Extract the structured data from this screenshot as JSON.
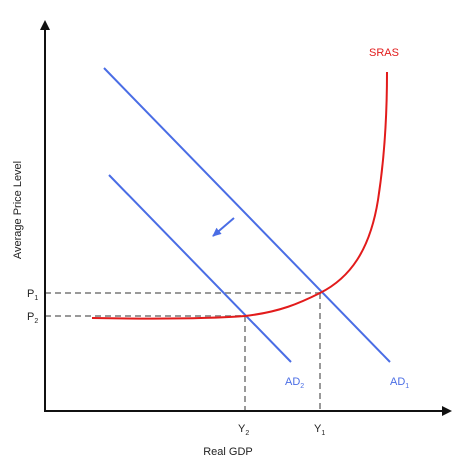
{
  "diagram": {
    "axes": {
      "x_label": "Real GDP",
      "y_label": "Average Price Level"
    },
    "curves": {
      "sras": {
        "label": "SRAS",
        "color": "#e21b1b"
      },
      "ad1": {
        "label": "AD",
        "subscript": "1",
        "color": "#4a6de5"
      },
      "ad2": {
        "label": "AD",
        "subscript": "2",
        "color": "#4a6de5"
      }
    },
    "levels": {
      "p1": {
        "label": "P",
        "subscript": "1"
      },
      "p2": {
        "label": "P",
        "subscript": "2"
      },
      "y1": {
        "label": "Y",
        "subscript": "1"
      },
      "y2": {
        "label": "Y",
        "subscript": "2"
      }
    },
    "shift_arrow": {
      "color": "#4a6de5",
      "direction": "down-left"
    },
    "guide_color": "#999999",
    "axis_color": "#111111"
  }
}
